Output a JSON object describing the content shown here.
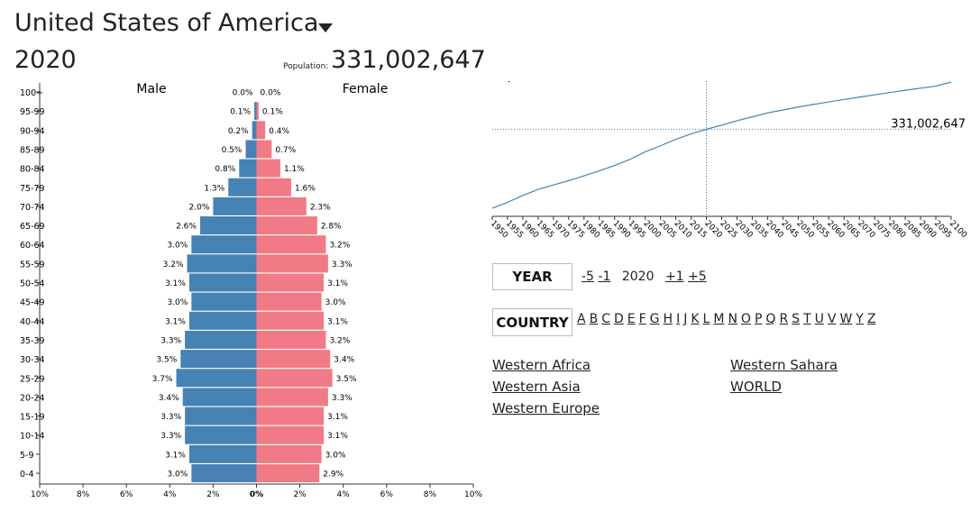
{
  "header": {
    "title": "United States of America",
    "year": "2020",
    "population_label": "Population:",
    "population": "331,002,647"
  },
  "chart_data": [
    {
      "type": "pyramid",
      "categories": [
        "0-4",
        "5-9",
        "10-14",
        "15-19",
        "20-24",
        "25-29",
        "30-34",
        "35-39",
        "40-44",
        "45-49",
        "50-54",
        "55-59",
        "60-64",
        "65-69",
        "70-74",
        "75-79",
        "80-84",
        "85-89",
        "90-94",
        "95-99",
        "100+"
      ],
      "series": [
        {
          "name": "Male",
          "color": "#4682b4",
          "values": [
            3.0,
            3.1,
            3.3,
            3.3,
            3.4,
            3.7,
            3.5,
            3.3,
            3.1,
            3.0,
            3.1,
            3.2,
            3.0,
            2.6,
            2.0,
            1.3,
            0.8,
            0.5,
            0.2,
            0.1,
            0.0
          ],
          "value_labels": [
            "3.0%",
            "3.1%",
            "3.3%",
            "3.3%",
            "3.4%",
            "3.7%",
            "3.5%",
            "3.3%",
            "3.1%",
            "3.0%",
            "3.1%",
            "3.2%",
            "3.0%",
            "2.6%",
            "2.0%",
            "1.3%",
            "0.8%",
            "0.5%",
            "0.2%",
            "0.1%",
            "0.0%"
          ]
        },
        {
          "name": "Female",
          "color": "#f07b87",
          "values": [
            2.9,
            3.0,
            3.1,
            3.1,
            3.3,
            3.5,
            3.4,
            3.2,
            3.1,
            3.0,
            3.1,
            3.3,
            3.2,
            2.8,
            2.3,
            1.6,
            1.1,
            0.7,
            0.4,
            0.1,
            0.0
          ],
          "value_labels": [
            "2.9%",
            "3.0%",
            "3.1%",
            "3.1%",
            "3.3%",
            "3.5%",
            "3.4%",
            "3.2%",
            "3.1%",
            "3.0%",
            "3.1%",
            "3.3%",
            "3.2%",
            "2.8%",
            "2.3%",
            "1.6%",
            "1.1%",
            "0.7%",
            "0.4%",
            "0.1%",
            "0.0%"
          ]
        }
      ],
      "xlim": [
        -10,
        10
      ],
      "xticks": [
        {
          "value": -10,
          "label": "10%"
        },
        {
          "value": -8,
          "label": "8%"
        },
        {
          "value": -6,
          "label": "6%"
        },
        {
          "value": -4,
          "label": "4%"
        },
        {
          "value": -2,
          "label": "2%"
        },
        {
          "value": 0,
          "label": "0%"
        },
        {
          "value": 2,
          "label": "2%"
        },
        {
          "value": 4,
          "label": "4%"
        },
        {
          "value": 6,
          "label": "6%"
        },
        {
          "value": 8,
          "label": "8%"
        },
        {
          "value": 10,
          "label": "10%"
        }
      ]
    },
    {
      "type": "line",
      "title": "Population",
      "color": "#4682b4",
      "x": [
        1950,
        1955,
        1960,
        1965,
        1970,
        1975,
        1980,
        1985,
        1990,
        1995,
        2000,
        2005,
        2010,
        2015,
        2020,
        2025,
        2030,
        2035,
        2040,
        2045,
        2050,
        2055,
        2060,
        2065,
        2070,
        2075,
        2080,
        2085,
        2090,
        2095,
        2100
      ],
      "values": [
        158800000,
        171700000,
        186700000,
        199700000,
        209500000,
        219000000,
        229500000,
        240500000,
        252100000,
        265200000,
        281700000,
        294900000,
        309000000,
        320900000,
        331002647,
        340000000,
        349600000,
        358000000,
        366600000,
        373000000,
        379400000,
        385000000,
        390500000,
        396000000,
        401000000,
        406000000,
        411000000,
        416000000,
        420500000,
        425000000,
        433900000
      ],
      "xlim": [
        1950,
        2100
      ],
      "xticks": [
        1950,
        1955,
        1960,
        1965,
        1970,
        1975,
        1980,
        1985,
        1990,
        1995,
        2000,
        2005,
        2010,
        2015,
        2020,
        2025,
        2030,
        2035,
        2040,
        2045,
        2050,
        2055,
        2060,
        2065,
        2070,
        2075,
        2080,
        2085,
        2090,
        2095,
        2100
      ],
      "ylim": [
        150000000,
        440000000
      ],
      "marker": {
        "x": 2020,
        "value": 331002647,
        "label": "331,002,647"
      }
    }
  ],
  "controls": {
    "year": {
      "button": "YEAR",
      "minus": [
        "-5",
        "-1"
      ],
      "current": "2020",
      "plus": [
        "+1",
        "+5"
      ]
    },
    "country": {
      "button": "COUNTRY",
      "letters": [
        "A",
        "B",
        "C",
        "D",
        "E",
        "F",
        "G",
        "H",
        "I",
        "J",
        "K",
        "L",
        "M",
        "N",
        "O",
        "P",
        "Q",
        "R",
        "S",
        "T",
        "U",
        "V",
        "W",
        "Y",
        "Z"
      ]
    },
    "links": [
      "Western Africa",
      "Western Asia",
      "Western Europe",
      "Western Sahara",
      "WORLD"
    ]
  }
}
